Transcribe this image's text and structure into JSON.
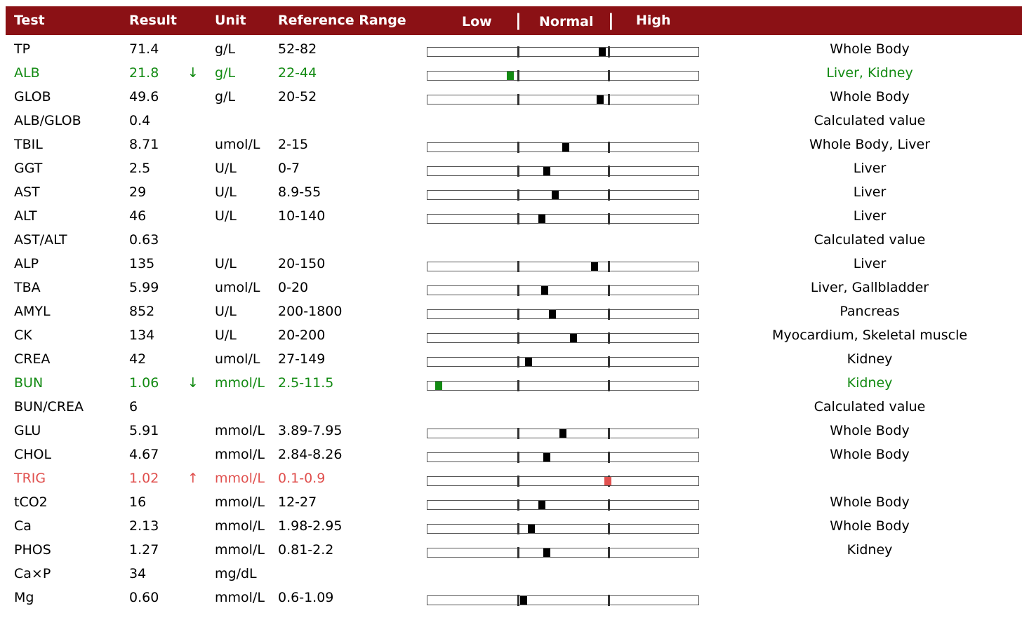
{
  "header": {
    "test": "Test",
    "result": "Result",
    "unit": "Unit",
    "reference_range": "Reference Range",
    "low": "Low",
    "sep1": "|",
    "normal": "Normal",
    "sep2": "|",
    "high": "High"
  },
  "colors": {
    "header_bg": "#8b1115",
    "low": "#128a12",
    "high": "#e0504e",
    "marker": "#000000"
  },
  "rows": [
    {
      "test": "TP",
      "result": "71.4",
      "flag": "",
      "unit": "g/L",
      "range": "52-82",
      "site": "Whole Body",
      "status": "normal",
      "level": 0.65
    },
    {
      "test": "ALB",
      "result": "21.8",
      "flag": "↓",
      "unit": "g/L",
      "range": "22-44",
      "site": "Liver, Kidney",
      "status": "low",
      "level": 0.3
    },
    {
      "test": "GLOB",
      "result": "49.6",
      "flag": "",
      "unit": "g/L",
      "range": "20-52",
      "site": "Whole Body",
      "status": "normal",
      "level": 0.64
    },
    {
      "test": "ALB/GLOB",
      "result": "0.4",
      "flag": "",
      "unit": "",
      "range": "",
      "site": "Calculated value",
      "status": "normal",
      "level": null
    },
    {
      "test": "TBIL",
      "result": "8.71",
      "flag": "",
      "unit": "umol/L",
      "range": "2-15",
      "site": "Whole Body, Liver",
      "status": "normal",
      "level": 0.51
    },
    {
      "test": "GGT",
      "result": "2.5",
      "flag": "",
      "unit": "U/L",
      "range": "0-7",
      "site": "Liver",
      "status": "normal",
      "level": 0.44
    },
    {
      "test": "AST",
      "result": "29",
      "flag": "",
      "unit": "U/L",
      "range": "8.9-55",
      "site": "Liver",
      "status": "normal",
      "level": 0.47
    },
    {
      "test": "ALT",
      "result": "46",
      "flag": "",
      "unit": "U/L",
      "range": "10-140",
      "site": "Liver",
      "status": "normal",
      "level": 0.42
    },
    {
      "test": "AST/ALT",
      "result": "0.63",
      "flag": "",
      "unit": "",
      "range": "",
      "site": "Calculated value",
      "status": "normal",
      "level": null
    },
    {
      "test": "ALP",
      "result": "135",
      "flag": "",
      "unit": "U/L",
      "range": "20-150",
      "site": "Liver",
      "status": "normal",
      "level": 0.62
    },
    {
      "test": "TBA",
      "result": "5.99",
      "flag": "",
      "unit": "umol/L",
      "range": "0-20",
      "site": "Liver, Gallbladder",
      "status": "normal",
      "level": 0.43
    },
    {
      "test": "AMYL",
      "result": "852",
      "flag": "",
      "unit": "U/L",
      "range": "200-1800",
      "site": "Pancreas",
      "status": "normal",
      "level": 0.46
    },
    {
      "test": "CK",
      "result": "134",
      "flag": "",
      "unit": "U/L",
      "range": "20-200",
      "site": "Myocardium, Skeletal muscle",
      "status": "normal",
      "level": 0.54
    },
    {
      "test": "CREA",
      "result": "42",
      "flag": "",
      "unit": "umol/L",
      "range": "27-149",
      "site": "Kidney",
      "status": "normal",
      "level": 0.37
    },
    {
      "test": "BUN",
      "result": "1.06",
      "flag": "↓",
      "unit": "mmol/L",
      "range": "2.5-11.5",
      "site": "Kidney",
      "status": "low",
      "level": 0.03
    },
    {
      "test": "BUN/CREA",
      "result": "6",
      "flag": "",
      "unit": "",
      "range": "",
      "site": "Calculated value",
      "status": "normal",
      "level": null
    },
    {
      "test": "GLU",
      "result": "5.91",
      "flag": "",
      "unit": "mmol/L",
      "range": "3.89-7.95",
      "site": "Whole Body",
      "status": "normal",
      "level": 0.5
    },
    {
      "test": "CHOL",
      "result": "4.67",
      "flag": "",
      "unit": "mmol/L",
      "range": "2.84-8.26",
      "site": "Whole Body",
      "status": "normal",
      "level": 0.44
    },
    {
      "test": "TRIG",
      "result": "1.02",
      "flag": "↑",
      "unit": "mmol/L",
      "range": "0.1-0.9",
      "site": "",
      "status": "high",
      "level": 0.67
    },
    {
      "test": "tCO2",
      "result": "16",
      "flag": "",
      "unit": "mmol/L",
      "range": "12-27",
      "site": "Whole Body",
      "status": "normal",
      "level": 0.42
    },
    {
      "test": "Ca",
      "result": "2.13",
      "flag": "",
      "unit": "mmol/L",
      "range": "1.98-2.95",
      "site": "Whole Body",
      "status": "normal",
      "level": 0.38
    },
    {
      "test": "PHOS",
      "result": "1.27",
      "flag": "",
      "unit": "mmol/L",
      "range": "0.81-2.2",
      "site": "Kidney",
      "status": "normal",
      "level": 0.44
    },
    {
      "test": "Ca×P",
      "result": "34",
      "flag": "",
      "unit": "mg/dL",
      "range": "",
      "site": "",
      "status": "normal",
      "level": null
    },
    {
      "test": "Mg",
      "result": "0.60",
      "flag": "",
      "unit": "mmol/L",
      "range": "0.6-1.09",
      "site": "",
      "status": "normal",
      "level": 0.35
    }
  ]
}
